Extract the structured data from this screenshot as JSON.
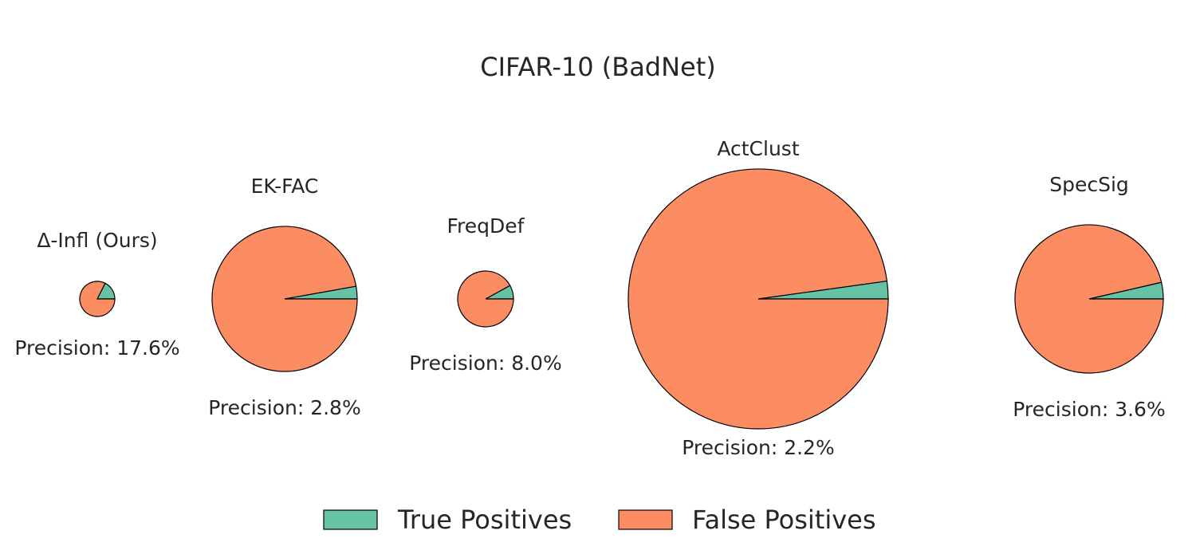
{
  "chart_data": {
    "type": "pie",
    "title": "CIFAR-10 (BadNet)",
    "colors": {
      "true_positive": "#66c2a5",
      "false_positive": "#fc8d62"
    },
    "legend": {
      "position": "bottom",
      "entries": [
        "True Positives",
        "False Positives"
      ]
    },
    "pies": [
      {
        "name": "Δ-Infl (Ours)",
        "precision": 17.6,
        "precision_label": "Precision: 17.6%",
        "slices": [
          {
            "label": "True Positives",
            "value": 17.6
          },
          {
            "label": "False Positives",
            "value": 82.4
          }
        ]
      },
      {
        "name": "EK-FAC",
        "precision": 2.8,
        "precision_label": "Precision: 2.8%",
        "slices": [
          {
            "label": "True Positives",
            "value": 2.8
          },
          {
            "label": "False Positives",
            "value": 97.2
          }
        ]
      },
      {
        "name": "FreqDef",
        "precision": 8.0,
        "precision_label": "Precision: 8.0%",
        "slices": [
          {
            "label": "True Positives",
            "value": 8.0
          },
          {
            "label": "False Positives",
            "value": 92.0
          }
        ]
      },
      {
        "name": "ActClust",
        "precision": 2.2,
        "precision_label": "Precision: 2.2%",
        "slices": [
          {
            "label": "True Positives",
            "value": 2.2
          },
          {
            "label": "False Positives",
            "value": 97.8
          }
        ]
      },
      {
        "name": "SpecSig",
        "precision": 3.6,
        "precision_label": "Precision: 3.6%",
        "slices": [
          {
            "label": "True Positives",
            "value": 3.6
          },
          {
            "label": "False Positives",
            "value": 96.4
          }
        ]
      }
    ]
  }
}
